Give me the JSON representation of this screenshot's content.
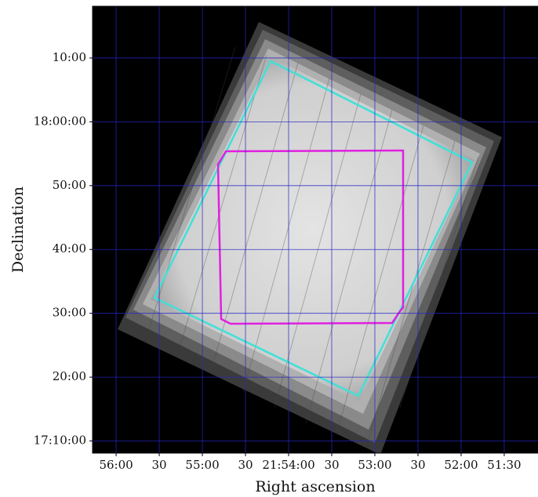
{
  "chart_data": {
    "type": "image",
    "xlabel": "Right ascension",
    "ylabel": "Declination",
    "xlim": [
      78976.4,
      78666.5
    ],
    "ylim": [
      1028.1,
      1098.1
    ],
    "xticks": [
      {
        "value": 78960,
        "label": "56:00"
      },
      {
        "value": 78930,
        "label": "30"
      },
      {
        "value": 78900,
        "label": "55:00"
      },
      {
        "value": 78870,
        "label": "30"
      },
      {
        "value": 78840,
        "label": "21:54:00"
      },
      {
        "value": 78810,
        "label": "30"
      },
      {
        "value": 78780,
        "label": "53:00"
      },
      {
        "value": 78750,
        "label": "30"
      },
      {
        "value": 78720,
        "label": "52:00"
      },
      {
        "value": 78690,
        "label": "51:30"
      }
    ],
    "yticks": [
      {
        "value": 1030,
        "label": "17:10:00"
      },
      {
        "value": 1040,
        "label": "20:00"
      },
      {
        "value": 1050,
        "label": "30:00"
      },
      {
        "value": 1060,
        "label": "40:00"
      },
      {
        "value": 1070,
        "label": "50:00"
      },
      {
        "value": 1080,
        "label": "18:00:00"
      },
      {
        "value": 1090,
        "label": "10:00"
      }
    ],
    "grid": true,
    "grid_color": "#2626c8"
  }
}
